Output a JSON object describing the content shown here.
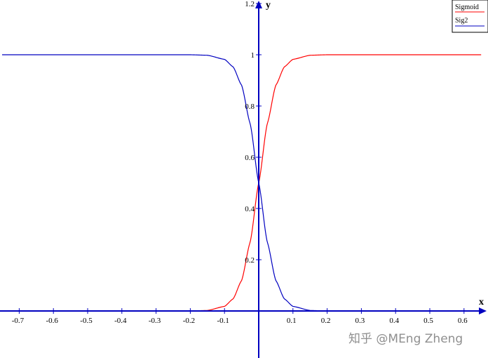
{
  "chart_data": {
    "type": "line",
    "title": "",
    "xlabel": "x",
    "ylabel": "y",
    "xlim": [
      -0.75,
      0.65
    ],
    "ylim": [
      0,
      1.2
    ],
    "x_ticks": [
      "-0.7",
      "-0.6",
      "-0.5",
      "-0.4",
      "-0.3",
      "-0.2",
      "-0.1",
      "0.1",
      "0.2",
      "0.3",
      "0.4",
      "0.5",
      "0.6"
    ],
    "y_ticks": [
      "0.2",
      "0.4",
      "0.6",
      "0.8",
      "1",
      "1.2"
    ],
    "grid": false,
    "legend_position": "top-right",
    "series": [
      {
        "name": "Sigmoid",
        "color": "#ff0000",
        "x": [
          -0.75,
          -0.2,
          -0.15,
          -0.1,
          -0.075,
          -0.05,
          -0.025,
          0,
          0.025,
          0.05,
          0.075,
          0.1,
          0.15,
          0.2,
          0.65
        ],
        "y": [
          0.0,
          0.0,
          0.002,
          0.018,
          0.047,
          0.119,
          0.269,
          0.5,
          0.731,
          0.881,
          0.953,
          0.982,
          0.998,
          1.0,
          1.0
        ]
      },
      {
        "name": "Sig2",
        "color": "#0000c0",
        "x": [
          -0.75,
          -0.2,
          -0.15,
          -0.1,
          -0.075,
          -0.05,
          -0.025,
          0,
          0.025,
          0.05,
          0.075,
          0.1,
          0.15,
          0.2,
          0.65
        ],
        "y": [
          1.0,
          1.0,
          0.998,
          0.982,
          0.953,
          0.881,
          0.731,
          0.5,
          0.269,
          0.119,
          0.047,
          0.018,
          0.002,
          0.0,
          0.0
        ]
      }
    ]
  },
  "watermark": "知乎 @MEng Zheng",
  "colors": {
    "axis": "#0000c0",
    "background": "#ffffff"
  }
}
